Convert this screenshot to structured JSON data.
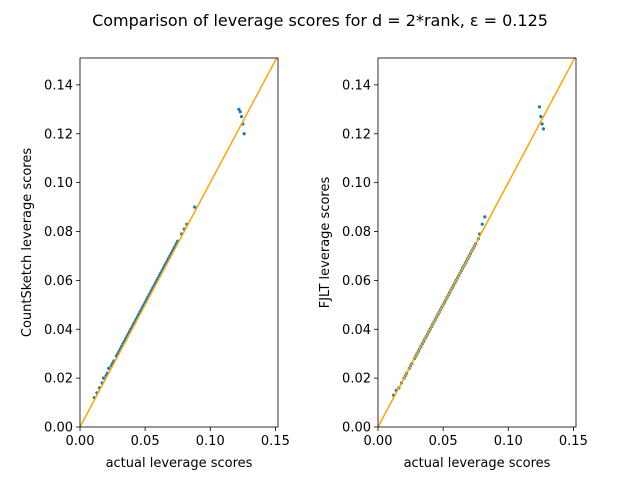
{
  "figure": {
    "title": "Comparison of leverage scores for d = 2*rank, ε = 0.125"
  },
  "colors": {
    "points": "#1f77b4",
    "reference_line": "#ffa500",
    "axes": "#000000"
  },
  "chart_data": [
    {
      "type": "scatter",
      "xlabel": "actual leverage scores",
      "ylabel": "CountSketch leverage scores",
      "xlim": [
        0.0,
        0.152
      ],
      "ylim": [
        0.0,
        0.151
      ],
      "xticks": [
        0.0,
        0.05,
        0.1,
        0.15
      ],
      "xtick_labels": [
        "0.00",
        "0.05",
        "0.10",
        "0.15"
      ],
      "yticks": [
        0.0,
        0.02,
        0.04,
        0.06,
        0.08,
        0.1,
        0.12,
        0.14
      ],
      "ytick_labels": [
        "0.00",
        "0.02",
        "0.04",
        "0.06",
        "0.08",
        "0.10",
        "0.12",
        "0.14"
      ],
      "reference_line": {
        "label": "y = x",
        "from": [
          0.0,
          0.0
        ],
        "to": [
          0.152,
          0.152
        ]
      },
      "series": [
        {
          "name": "leverage scores",
          "x": [
            0.011,
            0.013,
            0.015,
            0.017,
            0.018,
            0.02,
            0.021,
            0.022,
            0.024,
            0.025,
            0.026,
            0.028,
            0.029,
            0.03,
            0.031,
            0.032,
            0.033,
            0.034,
            0.035,
            0.036,
            0.037,
            0.038,
            0.039,
            0.04,
            0.041,
            0.042,
            0.043,
            0.044,
            0.045,
            0.046,
            0.047,
            0.048,
            0.049,
            0.05,
            0.051,
            0.052,
            0.053,
            0.054,
            0.055,
            0.056,
            0.057,
            0.058,
            0.059,
            0.06,
            0.061,
            0.062,
            0.063,
            0.064,
            0.065,
            0.066,
            0.067,
            0.068,
            0.069,
            0.07,
            0.071,
            0.072,
            0.073,
            0.074,
            0.075,
            0.078,
            0.08,
            0.082,
            0.088,
            0.122,
            0.123,
            0.124,
            0.125,
            0.126
          ],
          "y": [
            0.012,
            0.014,
            0.016,
            0.018,
            0.02,
            0.021,
            0.022,
            0.024,
            0.025,
            0.026,
            0.027,
            0.029,
            0.03,
            0.031,
            0.032,
            0.033,
            0.034,
            0.035,
            0.036,
            0.037,
            0.038,
            0.039,
            0.04,
            0.041,
            0.042,
            0.043,
            0.044,
            0.045,
            0.046,
            0.047,
            0.048,
            0.049,
            0.05,
            0.051,
            0.052,
            0.053,
            0.054,
            0.055,
            0.056,
            0.057,
            0.058,
            0.059,
            0.06,
            0.061,
            0.062,
            0.063,
            0.064,
            0.065,
            0.066,
            0.067,
            0.068,
            0.069,
            0.07,
            0.071,
            0.072,
            0.073,
            0.074,
            0.075,
            0.076,
            0.079,
            0.081,
            0.083,
            0.09,
            0.13,
            0.129,
            0.127,
            0.124,
            0.12
          ]
        }
      ]
    },
    {
      "type": "scatter",
      "xlabel": "actual leverage scores",
      "ylabel": "FJLT leverage scores",
      "xlim": [
        0.0,
        0.152
      ],
      "ylim": [
        0.0,
        0.151
      ],
      "xticks": [
        0.0,
        0.05,
        0.1,
        0.15
      ],
      "xtick_labels": [
        "0.00",
        "0.05",
        "0.10",
        "0.15"
      ],
      "yticks": [
        0.0,
        0.02,
        0.04,
        0.06,
        0.08,
        0.1,
        0.12,
        0.14
      ],
      "ytick_labels": [
        "0.00",
        "0.02",
        "0.04",
        "0.06",
        "0.08",
        "0.10",
        "0.12",
        "0.14"
      ],
      "reference_line": {
        "label": "y = x",
        "from": [
          0.0,
          0.0
        ],
        "to": [
          0.152,
          0.152
        ]
      },
      "series": [
        {
          "name": "leverage scores",
          "x": [
            0.012,
            0.014,
            0.016,
            0.018,
            0.02,
            0.021,
            0.022,
            0.024,
            0.025,
            0.026,
            0.028,
            0.029,
            0.03,
            0.031,
            0.032,
            0.033,
            0.034,
            0.035,
            0.036,
            0.037,
            0.038,
            0.039,
            0.04,
            0.041,
            0.042,
            0.043,
            0.044,
            0.045,
            0.046,
            0.047,
            0.048,
            0.049,
            0.05,
            0.051,
            0.052,
            0.053,
            0.054,
            0.055,
            0.056,
            0.057,
            0.058,
            0.059,
            0.06,
            0.061,
            0.062,
            0.063,
            0.064,
            0.065,
            0.066,
            0.067,
            0.068,
            0.069,
            0.07,
            0.071,
            0.072,
            0.073,
            0.074,
            0.075,
            0.077,
            0.078,
            0.08,
            0.082,
            0.124,
            0.125,
            0.126,
            0.127
          ],
          "y": [
            0.013,
            0.015,
            0.016,
            0.018,
            0.02,
            0.021,
            0.022,
            0.024,
            0.025,
            0.026,
            0.028,
            0.029,
            0.03,
            0.031,
            0.032,
            0.033,
            0.034,
            0.035,
            0.036,
            0.037,
            0.038,
            0.039,
            0.04,
            0.041,
            0.042,
            0.043,
            0.044,
            0.045,
            0.046,
            0.047,
            0.048,
            0.049,
            0.05,
            0.051,
            0.052,
            0.053,
            0.054,
            0.055,
            0.056,
            0.057,
            0.058,
            0.059,
            0.06,
            0.061,
            0.062,
            0.063,
            0.064,
            0.065,
            0.066,
            0.067,
            0.068,
            0.069,
            0.07,
            0.071,
            0.072,
            0.073,
            0.074,
            0.075,
            0.077,
            0.079,
            0.083,
            0.086,
            0.131,
            0.127,
            0.124,
            0.122
          ]
        }
      ]
    }
  ]
}
